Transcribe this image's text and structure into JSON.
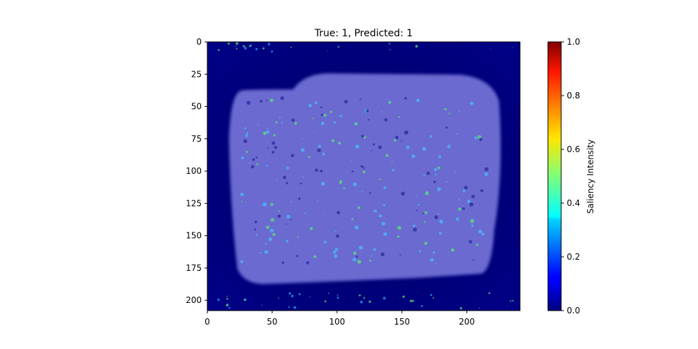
{
  "chart_data": {
    "type": "heatmap",
    "title": "True: 1, Predicted: 1",
    "x_ticks": [
      0,
      50,
      100,
      150,
      200
    ],
    "y_ticks": [
      0,
      25,
      50,
      75,
      100,
      125,
      150,
      175,
      200
    ],
    "xlim": [
      0,
      241
    ],
    "ylim": [
      208,
      0
    ],
    "image_width": 241,
    "image_height": 208,
    "colorbar": {
      "label": "Saliency Intensity",
      "ticks": [
        "0.0",
        "0.2",
        "0.4",
        "0.6",
        "0.8",
        "1.0"
      ],
      "range": [
        0,
        1
      ],
      "colormap": "jet"
    },
    "colors": {
      "background": "#00006e",
      "object": "#6f6fd6",
      "hotspot": "#5be07a"
    }
  }
}
